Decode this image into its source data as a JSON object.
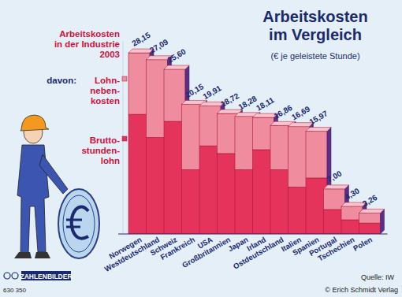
{
  "chart_data": {
    "type": "bar",
    "stacked": true,
    "title": "Arbeitskosten im Vergleich",
    "subtitle": "(€ je geleistete Stunde)",
    "annotation": [
      "Arbeitskosten",
      "in der Industrie",
      "2003"
    ],
    "legend_title": "davon:",
    "legend": "left",
    "tick_labels": "x",
    "categories": [
      "Norwegen",
      "Westdeutschland",
      "Schweiz",
      "Frankreich",
      "USA",
      "Großbritannien",
      "Japan",
      "Irland",
      "Ostdeutschland",
      "Italien",
      "Spanien",
      "Portugal",
      "Tschechien",
      "Polen"
    ],
    "series": [
      {
        "name": "Brutto-stunden-lohn",
        "color": "#e5345c",
        "values": [
          18.6,
          15.0,
          17.5,
          10.0,
          13.7,
          12.5,
          10.0,
          13.1,
          10.0,
          7.3,
          8.7,
          3.8,
          2.2,
          1.7
        ]
      },
      {
        "name": "Lohn-neben-kosten",
        "color": "#ef8d9f",
        "values": [
          9.55,
          12.09,
          8.1,
          10.15,
          6.21,
          6.22,
          8.28,
          5.01,
          6.86,
          9.39,
          7.27,
          3.2,
          2.1,
          1.56
        ]
      }
    ],
    "totals": [
      28.15,
      27.09,
      25.6,
      20.15,
      19.91,
      18.72,
      18.28,
      18.11,
      16.86,
      16.69,
      15.97,
      7.0,
      4.3,
      3.26
    ],
    "total_labels": [
      "28,15",
      "27,09",
      "25,60",
      "20,15",
      "19,91",
      "18,72",
      "18,28",
      "18,11",
      "16,86",
      "16,69",
      "15,97",
      "7,00",
      "4,30",
      "3,26"
    ],
    "ylim": [
      0,
      30
    ],
    "source": "Quelle: IW",
    "publisher": "© Erich Schmidt Verlag",
    "brand": "ZAHLENBILDER",
    "code": "630 350"
  }
}
